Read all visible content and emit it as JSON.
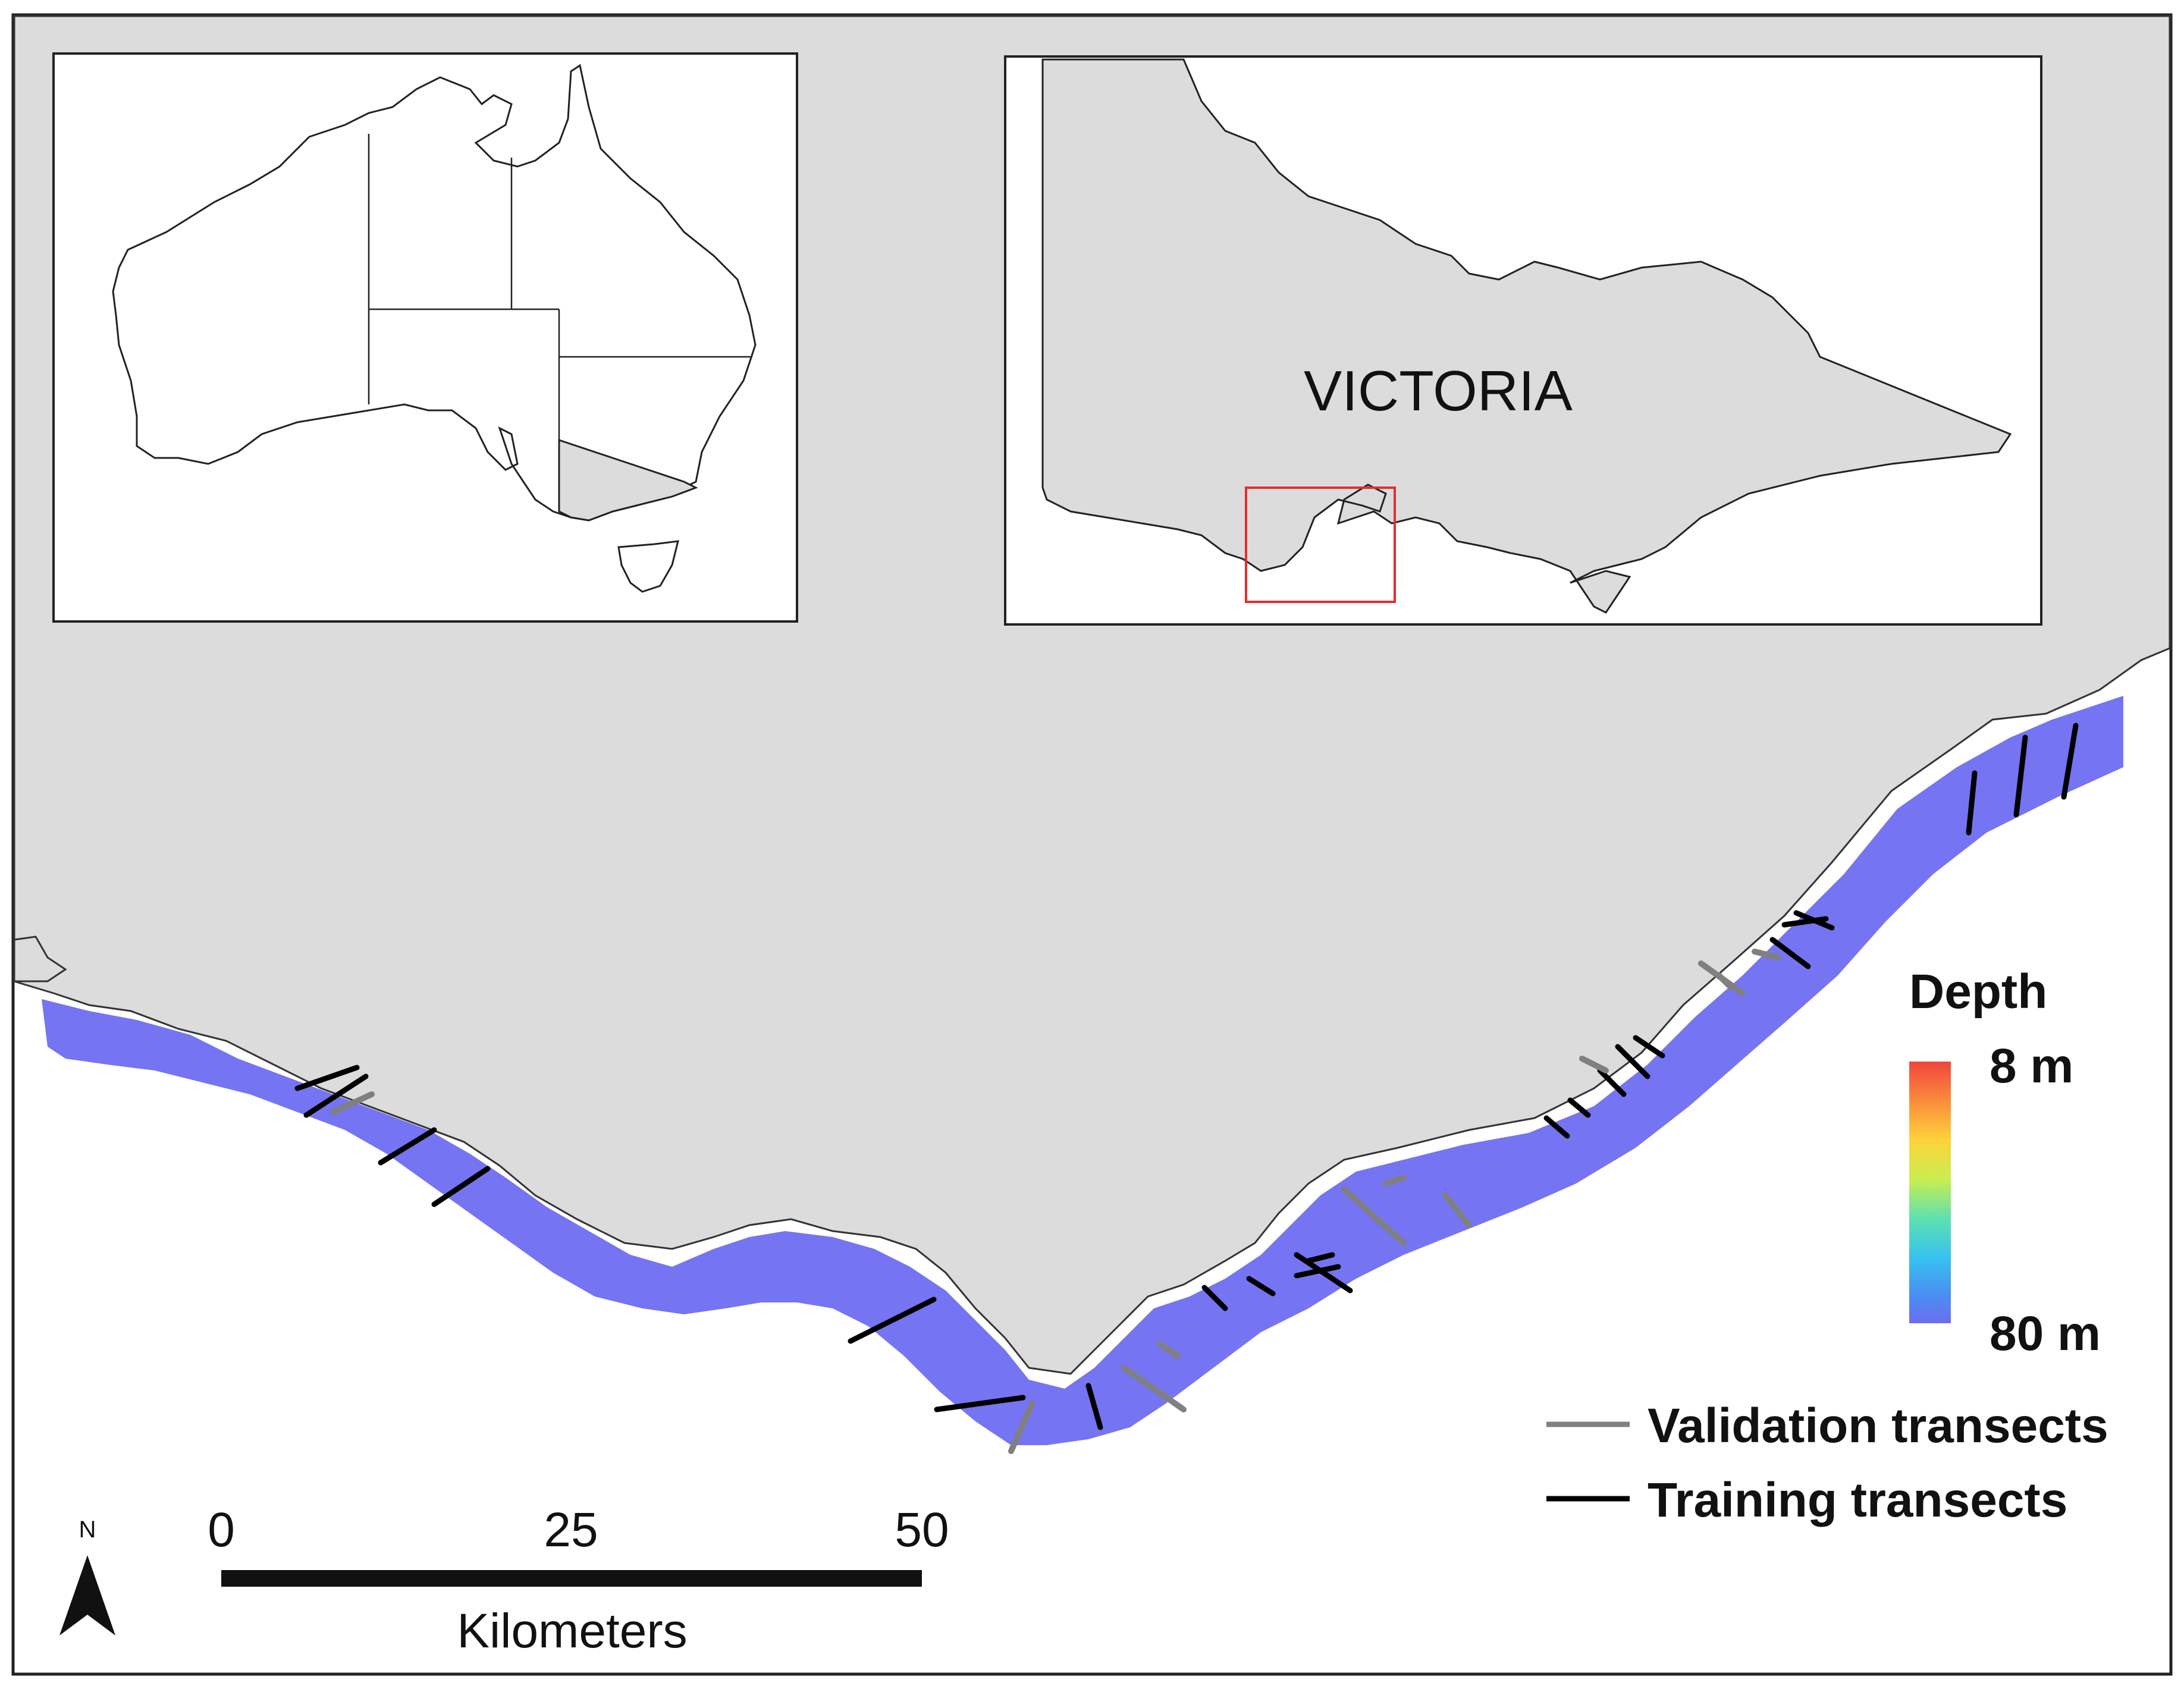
{
  "map": {
    "region_label": "VICTORIA",
    "north_label": "N",
    "scale_bar": {
      "ticks": [
        "0",
        "25",
        "50"
      ],
      "unit": "Kilometers"
    },
    "depth_legend": {
      "title": "Depth",
      "min_label": "8 m",
      "max_label": "80 m",
      "gradient_colors": [
        "#f0463c",
        "#fb8c3c",
        "#fdd33b",
        "#c8ee50",
        "#5fe0b0",
        "#36c2ef",
        "#4a8cf2",
        "#6e6df1"
      ]
    },
    "legend": {
      "validation_label": "Validation transects",
      "training_label": "Training transects",
      "validation_color": "#808080",
      "training_color": "#000000"
    },
    "colors": {
      "land": "#dcdcdc",
      "sea": "#ffffff",
      "extent_box": "#e03030"
    }
  }
}
